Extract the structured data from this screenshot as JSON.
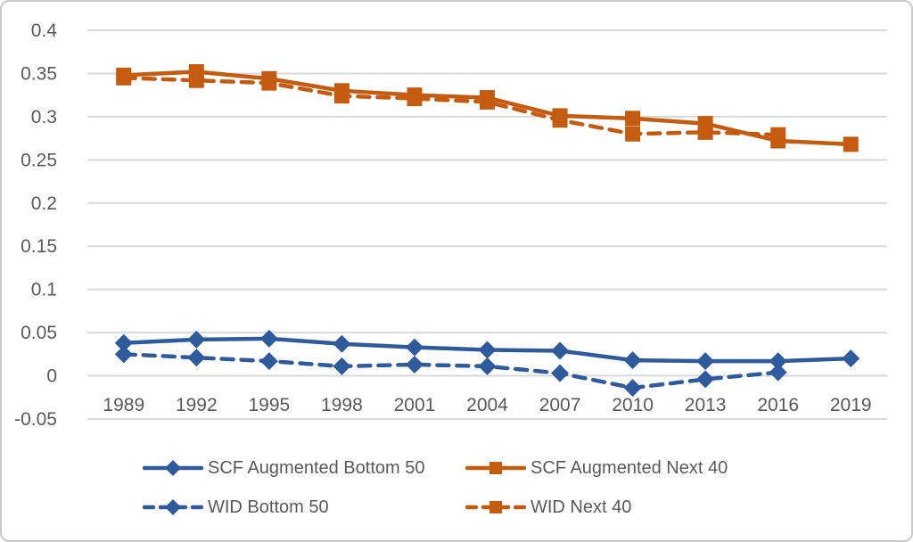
{
  "chart_data": {
    "type": "line",
    "title": "",
    "xlabel": "",
    "ylabel": "",
    "categories": [
      "1989",
      "1992",
      "1995",
      "1998",
      "2001",
      "2004",
      "2007",
      "2010",
      "2013",
      "2016",
      "2019"
    ],
    "series": [
      {
        "name": "SCF Augmented Bottom 50",
        "color": "#2F5B9C",
        "line_style": "solid",
        "marker": "diamond",
        "values": [
          0.038,
          0.042,
          0.043,
          0.037,
          0.033,
          0.03,
          0.029,
          0.018,
          0.017,
          0.017,
          0.02
        ]
      },
      {
        "name": "SCF Augmented Next 40",
        "color": "#C55A11",
        "line_style": "solid",
        "marker": "square",
        "values": [
          0.348,
          0.352,
          0.344,
          0.33,
          0.325,
          0.322,
          0.301,
          0.298,
          0.292,
          0.272,
          0.268
        ]
      },
      {
        "name": "WID Bottom 50",
        "color": "#2F5B9C",
        "line_style": "dashed",
        "marker": "diamond",
        "values": [
          0.025,
          0.021,
          0.017,
          0.011,
          0.013,
          0.011,
          0.003,
          -0.014,
          -0.004,
          0.004,
          null
        ]
      },
      {
        "name": "WID Next 40",
        "color": "#C55A11",
        "line_style": "dashed",
        "marker": "square",
        "values": [
          0.345,
          0.342,
          0.339,
          0.324,
          0.321,
          0.317,
          0.296,
          0.28,
          0.282,
          0.279,
          null
        ]
      }
    ],
    "y_ticks": [
      "0.4",
      "0.35",
      "0.3",
      "0.25",
      "0.2",
      "0.15",
      "0.1",
      "0.05",
      "0",
      "-0.05"
    ],
    "ylim": [
      -0.05,
      0.4
    ],
    "grid": "horizontal",
    "legend_position": "bottom",
    "colors": {
      "axis_text": "#595959",
      "gridline": "#D9D9D9",
      "border": "#C9C9C9",
      "background": "#FFFFFF"
    }
  },
  "legend": {
    "rows": [
      [
        "SCF Augmented Bottom 50",
        "SCF Augmented Next 40"
      ],
      [
        "WID Bottom 50",
        "WID Next 40"
      ]
    ]
  }
}
